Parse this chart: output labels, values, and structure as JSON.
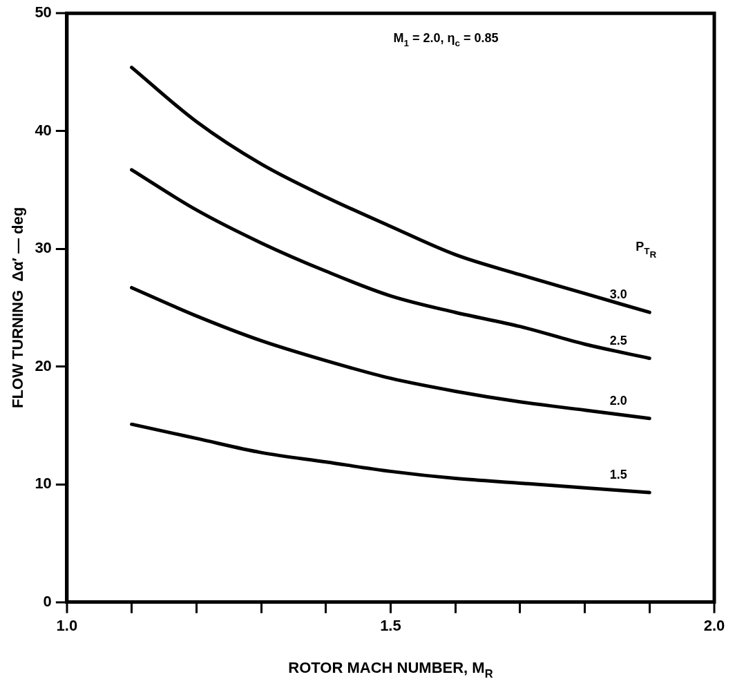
{
  "chart_data": {
    "type": "line",
    "xlabel": "ROTOR MACH NUMBER, M$_{R}$",
    "ylabel": "FLOW TURNING  Δα′ — deg",
    "legend_title": "P$_{T}$$_{R}$",
    "annotations": [
      "M$_{1}$ = 2.0, η$_{c}$ = 0.85"
    ],
    "x": [
      1.1,
      1.2,
      1.3,
      1.4,
      1.5,
      1.6,
      1.7,
      1.8,
      1.9
    ],
    "series": [
      {
        "name": "3.0",
        "color": "#000000",
        "values": [
          45.4,
          40.8,
          37.2,
          34.4,
          31.9,
          29.5,
          27.8,
          26.2,
          24.6
        ]
      },
      {
        "name": "2.5",
        "color": "#000000",
        "values": [
          36.7,
          33.3,
          30.5,
          28.1,
          26.0,
          24.6,
          23.4,
          21.9,
          20.7
        ]
      },
      {
        "name": "2.0",
        "color": "#000000",
        "values": [
          26.7,
          24.3,
          22.2,
          20.5,
          19.0,
          17.9,
          17.0,
          16.3,
          15.6
        ]
      },
      {
        "name": "1.5",
        "color": "#000000",
        "values": [
          15.1,
          13.9,
          12.7,
          11.9,
          11.1,
          10.5,
          10.1,
          9.7,
          9.3
        ]
      }
    ],
    "xlim": [
      1.0,
      2.0
    ],
    "xticks": [
      {
        "value": 1.0,
        "label": "1.0"
      },
      {
        "value": 1.1,
        "label": null
      },
      {
        "value": 1.2,
        "label": null
      },
      {
        "value": 1.3,
        "label": null
      },
      {
        "value": 1.4,
        "label": null
      },
      {
        "value": 1.5,
        "label": "1.5"
      },
      {
        "value": 1.6,
        "label": null
      },
      {
        "value": 1.7,
        "label": null
      },
      {
        "value": 1.8,
        "label": null
      },
      {
        "value": 1.9,
        "label": null
      },
      {
        "value": 2.0,
        "label": "2.0"
      }
    ],
    "ylim": [
      0,
      50
    ],
    "yticks": [
      0,
      10,
      20,
      30,
      40,
      50
    ],
    "grid": false,
    "legend": false,
    "marker": "none",
    "line_style": "solid"
  }
}
